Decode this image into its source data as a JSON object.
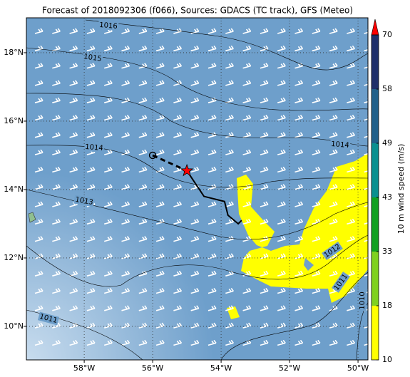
{
  "chart_data": {
    "type": "map",
    "title": "Forecast of 2018092306 (f066), Sources: GDACS (TC track), GFS (Meteo)",
    "xlim": [
      -59.69,
      -49.71
    ],
    "ylim": [
      9.02,
      19.02
    ],
    "xticks": [
      {
        "value": -58,
        "label": "58°W"
      },
      {
        "value": -56,
        "label": "56°W"
      },
      {
        "value": -54,
        "label": "54°W"
      },
      {
        "value": -52,
        "label": "52°W"
      },
      {
        "value": -50,
        "label": "50°W"
      }
    ],
    "yticks": [
      {
        "value": 10,
        "label": "10°N"
      },
      {
        "value": 12,
        "label": "12°N"
      },
      {
        "value": 14,
        "label": "14°N"
      },
      {
        "value": 16,
        "label": "16°N"
      },
      {
        "value": 18,
        "label": "18°N"
      }
    ],
    "grid": true,
    "isobar_labels": [
      1016,
      1015,
      1014,
      1014,
      1013,
      1012,
      1011,
      1011,
      1010
    ],
    "track": {
      "past": {
        "lon": [
          -56.0,
          -55.0
        ],
        "lat": [
          15.0,
          14.55
        ]
      },
      "forecast": {
        "lon": [
          -55.0,
          -54.5,
          -53.9,
          -53.8,
          -53.5,
          -53.4
        ],
        "lat": [
          14.55,
          13.8,
          13.65,
          13.25,
          13.0,
          13.1
        ]
      },
      "origin": {
        "lon": -56.0,
        "lat": 15.0
      },
      "current": {
        "lon": -55.0,
        "lat": 14.55
      }
    },
    "colorbar": {
      "label": "10 m wind speed (m/s)",
      "levels": [
        10,
        18,
        33,
        43,
        49,
        58,
        70
      ],
      "colors": [
        "#ffff00",
        "#7fd11f",
        "#10a020",
        "#0a9090",
        "#20608a",
        "#1f2f6a"
      ],
      "extend_color": "#ff0000"
    }
  }
}
